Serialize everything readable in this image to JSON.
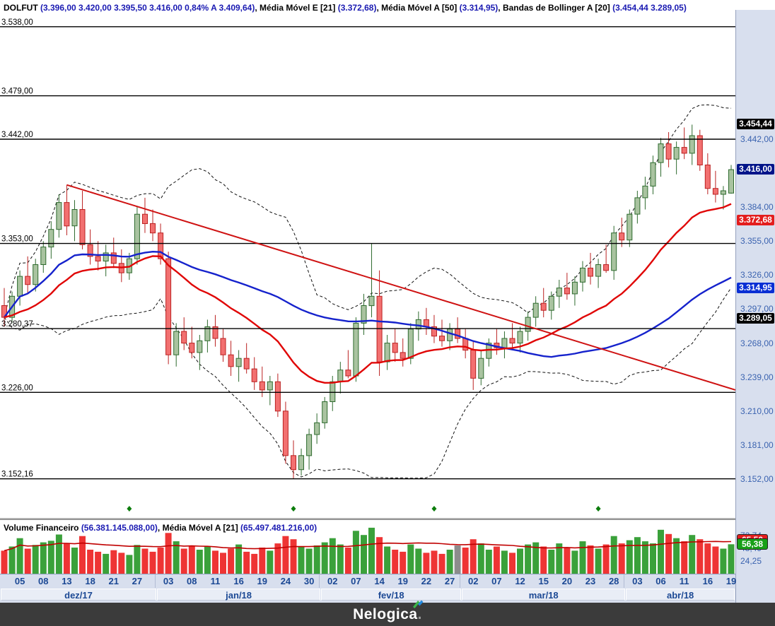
{
  "title_bar": {
    "segments": [
      {
        "text": "DOLFUT ",
        "style": "dark"
      },
      {
        "text": "(3.396,00  3.420,00  3.395,50  3.416,00  0,84%  A 3.409,64)",
        "style": "blue"
      },
      {
        "text": ", Média Móvel E [21] ",
        "style": "dark"
      },
      {
        "text": "(3.372,68)",
        "style": "blue"
      },
      {
        "text": ", Média Móvel A [50] ",
        "style": "dark"
      },
      {
        "text": "(3.314,95)",
        "style": "blue"
      },
      {
        "text": ", Bandas de Bollinger A [20] ",
        "style": "dark"
      },
      {
        "text": "(3.454,44  3.289,05)",
        "style": "blue"
      }
    ]
  },
  "volume_bar": {
    "segments": [
      {
        "text": "Volume Financeiro ",
        "style": "dark"
      },
      {
        "text": "(56.381.145.088,00)",
        "style": "blue"
      },
      {
        "text": ", Média Móvel A [21] ",
        "style": "dark"
      },
      {
        "text": "(65.497.481.216,00)",
        "style": "blue"
      }
    ]
  },
  "footer": {
    "brand": "Nelogica",
    "dot": "."
  },
  "chart_data": {
    "type": "candlestick",
    "symbol": "DOLFUT",
    "title": "DOLFUT daily with EMA[21], SMA[50], Bollinger[20] and financial volume",
    "price_levels": [
      {
        "label": "3.538,00",
        "value": 3538.0
      },
      {
        "label": "3.479,00",
        "value": 3479.0
      },
      {
        "label": "3.442,00",
        "value": 3442.0
      },
      {
        "label": "3.353,00",
        "value": 3353.0
      },
      {
        "label": "3.280,37",
        "value": 3280.37
      },
      {
        "label": "3.226,00",
        "value": 3226.0
      },
      {
        "label": "3.152,16",
        "value": 3152.16
      }
    ],
    "price_axis_ticks": [
      {
        "label": "3.442,00",
        "value": 3442
      },
      {
        "label": "3.384,00",
        "value": 3384
      },
      {
        "label": "3.355,00",
        "value": 3355
      },
      {
        "label": "3.326,00",
        "value": 3326
      },
      {
        "label": "3.297,00",
        "value": 3297
      },
      {
        "label": "3.268,00",
        "value": 3268
      },
      {
        "label": "3.239,00",
        "value": 3239
      },
      {
        "label": "3.210,00",
        "value": 3210
      },
      {
        "label": "3.181,00",
        "value": 3181
      },
      {
        "label": "3.152,00",
        "value": 3152
      }
    ],
    "price_axis_badges": [
      {
        "label": "3.454,44",
        "value": 3454.44,
        "bg": "#000000"
      },
      {
        "label": "3.416,00",
        "value": 3416.0,
        "bg": "#001489"
      },
      {
        "label": "3.372,68",
        "value": 3372.68,
        "bg": "#e31d1d"
      },
      {
        "label": "3.314,95",
        "value": 3314.95,
        "bg": "#0a2fd4"
      },
      {
        "label": "3.289,05",
        "value": 3289.05,
        "bg": "#000000"
      }
    ],
    "candles": [
      [
        3300,
        3315,
        3282,
        3290
      ],
      [
        3290,
        3312,
        3285,
        3308
      ],
      [
        3308,
        3330,
        3300,
        3325
      ],
      [
        3325,
        3342,
        3310,
        3318
      ],
      [
        3318,
        3340,
        3312,
        3335
      ],
      [
        3335,
        3355,
        3328,
        3350
      ],
      [
        3350,
        3372,
        3340,
        3365
      ],
      [
        3365,
        3395,
        3358,
        3388
      ],
      [
        3388,
        3403,
        3360,
        3368
      ],
      [
        3368,
        3390,
        3355,
        3382
      ],
      [
        3382,
        3398,
        3348,
        3352
      ],
      [
        3352,
        3365,
        3335,
        3342
      ],
      [
        3342,
        3355,
        3330,
        3338
      ],
      [
        3338,
        3352,
        3325,
        3345
      ],
      [
        3345,
        3358,
        3332,
        3336
      ],
      [
        3336,
        3348,
        3320,
        3328
      ],
      [
        3328,
        3345,
        3322,
        3340
      ],
      [
        3340,
        3385,
        3335,
        3378
      ],
      [
        3378,
        3392,
        3362,
        3370
      ],
      [
        3370,
        3382,
        3355,
        3362
      ],
      [
        3362,
        3370,
        3335,
        3340
      ],
      [
        3340,
        3346,
        3250,
        3258
      ],
      [
        3258,
        3285,
        3248,
        3278
      ],
      [
        3278,
        3290,
        3262,
        3268
      ],
      [
        3268,
        3282,
        3255,
        3260
      ],
      [
        3260,
        3275,
        3245,
        3270
      ],
      [
        3270,
        3288,
        3260,
        3282
      ],
      [
        3282,
        3292,
        3265,
        3272
      ],
      [
        3272,
        3280,
        3252,
        3258
      ],
      [
        3258,
        3270,
        3240,
        3248
      ],
      [
        3248,
        3262,
        3235,
        3255
      ],
      [
        3255,
        3268,
        3242,
        3246
      ],
      [
        3246,
        3256,
        3228,
        3235
      ],
      [
        3235,
        3248,
        3222,
        3228
      ],
      [
        3228,
        3240,
        3215,
        3235
      ],
      [
        3235,
        3242,
        3205,
        3210
      ],
      [
        3210,
        3218,
        3165,
        3172
      ],
      [
        3172,
        3185,
        3152.16,
        3160
      ],
      [
        3160,
        3178,
        3155,
        3172
      ],
      [
        3172,
        3195,
        3160,
        3190
      ],
      [
        3190,
        3208,
        3182,
        3200
      ],
      [
        3200,
        3222,
        3195,
        3218
      ],
      [
        3218,
        3240,
        3210,
        3235
      ],
      [
        3235,
        3252,
        3225,
        3245
      ],
      [
        3245,
        3262,
        3238,
        3240
      ],
      [
        3240,
        3290,
        3235,
        3285
      ],
      [
        3285,
        3310,
        3275,
        3300
      ],
      [
        3300,
        3353,
        3290,
        3308
      ],
      [
        3308,
        3330,
        3240,
        3252
      ],
      [
        3252,
        3275,
        3245,
        3268
      ],
      [
        3268,
        3280,
        3252,
        3260
      ],
      [
        3260,
        3272,
        3248,
        3255
      ],
      [
        3255,
        3285,
        3250,
        3280
      ],
      [
        3280,
        3295,
        3270,
        3288
      ],
      [
        3288,
        3298,
        3275,
        3282
      ],
      [
        3282,
        3292,
        3268,
        3274
      ],
      [
        3274,
        3288,
        3265,
        3270
      ],
      [
        3270,
        3285,
        3262,
        3280
      ],
      [
        3280,
        3290,
        3268,
        3272
      ],
      [
        3272,
        3280,
        3255,
        3262
      ],
      [
        3262,
        3270,
        3228,
        3238
      ],
      [
        3238,
        3262,
        3232,
        3255
      ],
      [
        3255,
        3272,
        3248,
        3268
      ],
      [
        3268,
        3280,
        3258,
        3264
      ],
      [
        3264,
        3278,
        3255,
        3272
      ],
      [
        3272,
        3285,
        3262,
        3268
      ],
      [
        3268,
        3282,
        3260,
        3278
      ],
      [
        3278,
        3295,
        3270,
        3290
      ],
      [
        3290,
        3308,
        3282,
        3302
      ],
      [
        3302,
        3315,
        3290,
        3296
      ],
      [
        3296,
        3312,
        3288,
        3308
      ],
      [
        3308,
        3322,
        3298,
        3315
      ],
      [
        3315,
        3328,
        3305,
        3310
      ],
      [
        3310,
        3325,
        3300,
        3320
      ],
      [
        3320,
        3338,
        3312,
        3332
      ],
      [
        3332,
        3345,
        3318,
        3325
      ],
      [
        3325,
        3340,
        3315,
        3335
      ],
      [
        3335,
        3352,
        3328,
        3330
      ],
      [
        3330,
        3368,
        3322,
        3362
      ],
      [
        3362,
        3375,
        3350,
        3356
      ],
      [
        3356,
        3382,
        3350,
        3378
      ],
      [
        3378,
        3398,
        3370,
        3392
      ],
      [
        3392,
        3410,
        3382,
        3402
      ],
      [
        3402,
        3428,
        3395,
        3422
      ],
      [
        3422,
        3443,
        3410,
        3438
      ],
      [
        3438,
        3448,
        3418,
        3425
      ],
      [
        3425,
        3440,
        3412,
        3435
      ],
      [
        3435,
        3452,
        3425,
        3430
      ],
      [
        3430,
        3454.44,
        3420,
        3445
      ],
      [
        3445,
        3450,
        3415,
        3420
      ],
      [
        3420,
        3430,
        3395,
        3400
      ],
      [
        3400,
        3415,
        3388,
        3395
      ],
      [
        3395,
        3402,
        3382,
        3398
      ],
      [
        3396,
        3420,
        3395.5,
        3416
      ]
    ],
    "day_ticks": [
      {
        "label": "05",
        "index": 2
      },
      {
        "label": "08",
        "index": 5
      },
      {
        "label": "13",
        "index": 8
      },
      {
        "label": "18",
        "index": 11
      },
      {
        "label": "21",
        "index": 14
      },
      {
        "label": "27",
        "index": 17
      },
      {
        "label": "03",
        "index": 21
      },
      {
        "label": "08",
        "index": 24
      },
      {
        "label": "11",
        "index": 27
      },
      {
        "label": "16",
        "index": 30
      },
      {
        "label": "19",
        "index": 33
      },
      {
        "label": "24",
        "index": 36
      },
      {
        "label": "30",
        "index": 39
      },
      {
        "label": "02",
        "index": 42
      },
      {
        "label": "07",
        "index": 45
      },
      {
        "label": "14",
        "index": 48
      },
      {
        "label": "19",
        "index": 51
      },
      {
        "label": "22",
        "index": 54
      },
      {
        "label": "27",
        "index": 57
      },
      {
        "label": "02",
        "index": 60
      },
      {
        "label": "07",
        "index": 63
      },
      {
        "label": "12",
        "index": 66
      },
      {
        "label": "15",
        "index": 69
      },
      {
        "label": "20",
        "index": 72
      },
      {
        "label": "23",
        "index": 75
      },
      {
        "label": "28",
        "index": 78
      },
      {
        "label": "03",
        "index": 81
      },
      {
        "label": "06",
        "index": 84
      },
      {
        "label": "11",
        "index": 87
      },
      {
        "label": "16",
        "index": 90
      },
      {
        "label": "19",
        "index": 93
      }
    ],
    "months": [
      {
        "label": "dez/17",
        "from": 0,
        "to": 19
      },
      {
        "label": "jan/18",
        "from": 20,
        "to": 40
      },
      {
        "label": "fev/18",
        "from": 41,
        "to": 58
      },
      {
        "label": "mar/18",
        "from": 59,
        "to": 79
      },
      {
        "label": "abr/18",
        "from": 80,
        "to": 93
      }
    ],
    "event_markers": {
      "shape": "diamond",
      "color": "#0d7d0d",
      "indices": [
        16,
        37,
        55,
        76
      ]
    },
    "trendline": {
      "from_index": 8,
      "from_price": 3403,
      "to_price": 3228,
      "color": "#cf1212"
    },
    "indicators": {
      "ema21_color": "#e00505",
      "sma50_color": "#1522cc",
      "bollinger_color": "#101010",
      "volume_ma_color": "#c00000"
    },
    "candle_colors": {
      "up_fill": "#a9c3a0",
      "up_stroke": "#2f6b2f",
      "down_fill": "#f27070",
      "down_stroke": "#bb2222",
      "vol_up": "#3aa13a",
      "vol_down": "#ee3434",
      "vol_gray": "#8c8c8c"
    },
    "volume": {
      "values": [
        44,
        52,
        68,
        48,
        55,
        60,
        63,
        75,
        58,
        50,
        72,
        46,
        42,
        38,
        45,
        40,
        36,
        55,
        48,
        42,
        50,
        78,
        62,
        48,
        54,
        46,
        52,
        44,
        40,
        48,
        56,
        42,
        38,
        50,
        44,
        58,
        72,
        66,
        52,
        48,
        54,
        60,
        68,
        56,
        50,
        82,
        74,
        88,
        70,
        52,
        46,
        42,
        56,
        48,
        40,
        44,
        38,
        46,
        54,
        50,
        66,
        58,
        46,
        52,
        44,
        40,
        48,
        56,
        60,
        52,
        46,
        58,
        50,
        44,
        62,
        54,
        48,
        56,
        72,
        58,
        64,
        70,
        62,
        58,
        84,
        76,
        68,
        62,
        74,
        66,
        58,
        52,
        48,
        56.38
      ],
      "gray_index": 58,
      "axis_ticks": [
        {
          "label": "72,74",
          "value": 72.74
        },
        {
          "label": "48,49",
          "value": 48.49
        },
        {
          "label": "24,25",
          "value": 24.25
        }
      ],
      "badges": [
        {
          "label": "65,50",
          "value": 65.5,
          "bg": "#e31d1d"
        },
        {
          "label": "56,38",
          "value": 56.38,
          "bg": "#18a018"
        }
      ]
    }
  }
}
